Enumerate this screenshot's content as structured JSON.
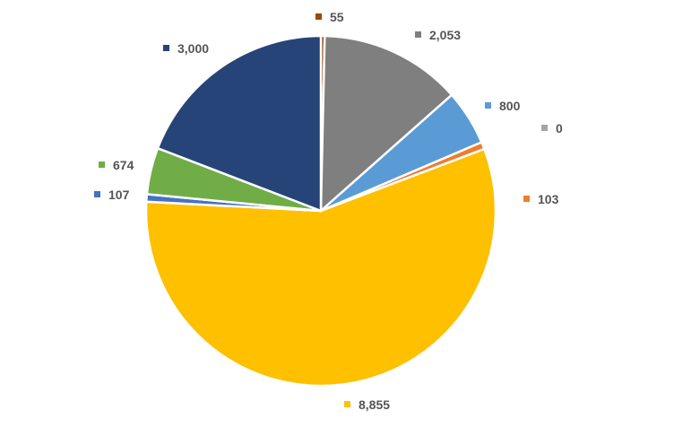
{
  "chart_data": {
    "type": "pie",
    "title": "",
    "start_angle_deg": 0,
    "direction": "clockwise",
    "legend": "none",
    "slices": [
      {
        "value": 55,
        "label": "55",
        "color": "#9E480E"
      },
      {
        "value": 2053,
        "label": "2,053",
        "color": "#7F7F7F"
      },
      {
        "value": 800,
        "label": "800",
        "color": "#5B9BD5"
      },
      {
        "value": 0,
        "label": "0",
        "color": "#A5A5A5"
      },
      {
        "value": 103,
        "label": "103",
        "color": "#ED7D31"
      },
      {
        "value": 8855,
        "label": "8,855",
        "color": "#FFC000"
      },
      {
        "value": 107,
        "label": "107",
        "color": "#4472C4"
      },
      {
        "value": 674,
        "label": "674",
        "color": "#70AD47"
      },
      {
        "value": 3000,
        "label": "3,000",
        "color": "#264478"
      }
    ]
  }
}
